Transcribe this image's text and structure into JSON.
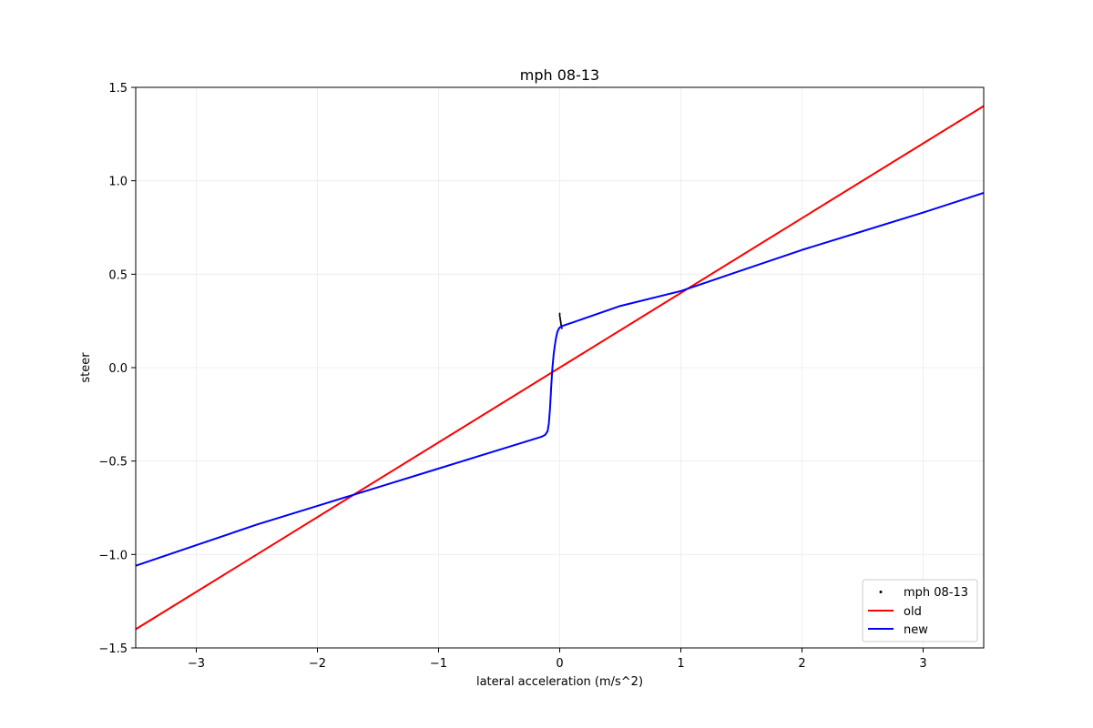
{
  "chart_data": {
    "type": "line",
    "title": "mph 08-13",
    "xlabel": "lateral acceleration (m/s^2)",
    "ylabel": "steer",
    "xlim": [
      -3.5,
      3.5
    ],
    "ylim": [
      -1.5,
      1.5
    ],
    "x_ticks": [
      -3,
      -2,
      -1,
      0,
      1,
      2,
      3
    ],
    "x_tick_labels": [
      "−3",
      "−2",
      "−1",
      "0",
      "1",
      "2",
      "3"
    ],
    "y_ticks": [
      -1.5,
      -1.0,
      -0.5,
      0.0,
      0.5,
      1.0,
      1.5
    ],
    "y_tick_labels": [
      "−1.5",
      "−1.0",
      "−0.5",
      "0.0",
      "0.5",
      "1.0",
      "1.5"
    ],
    "grid": true,
    "legend_position": "lower right",
    "legend": [
      "mph 08-13",
      "old",
      "new"
    ],
    "series": [
      {
        "name": "mph 08-13",
        "kind": "scatter",
        "color": "#000000",
        "points": [
          [
            0.0,
            0.29
          ],
          [
            0.0,
            0.285
          ],
          [
            0.0,
            0.28
          ],
          [
            0.0,
            0.275
          ],
          [
            0.003,
            0.27
          ],
          [
            0.003,
            0.265
          ],
          [
            0.005,
            0.26
          ],
          [
            0.005,
            0.255
          ],
          [
            0.008,
            0.25
          ],
          [
            0.008,
            0.245
          ],
          [
            0.01,
            0.24
          ],
          [
            0.01,
            0.235
          ],
          [
            0.012,
            0.23
          ],
          [
            0.012,
            0.225
          ],
          [
            0.015,
            0.22
          ],
          [
            0.015,
            0.215
          ],
          [
            0.018,
            0.21
          ]
        ]
      },
      {
        "name": "old",
        "kind": "line",
        "color": "#ff0000",
        "x": [
          -3.5,
          3.5
        ],
        "y": [
          -1.4,
          1.4
        ]
      },
      {
        "name": "new",
        "kind": "line",
        "color": "#0000ff",
        "x": [
          -3.5,
          -3.0,
          -2.5,
          -2.0,
          -1.5,
          -1.0,
          -0.5,
          -0.25,
          -0.15,
          -0.12,
          -0.1,
          -0.09,
          -0.08,
          -0.07,
          -0.06,
          -0.05,
          -0.04,
          -0.03,
          -0.02,
          -0.01,
          0.0,
          0.03,
          0.1,
          0.5,
          1.0,
          1.5,
          2.0,
          2.5,
          3.0,
          3.5
        ],
        "y": [
          -1.06,
          -0.95,
          -0.84,
          -0.74,
          -0.64,
          -0.54,
          -0.44,
          -0.39,
          -0.37,
          -0.36,
          -0.34,
          -0.3,
          -0.22,
          -0.1,
          0.0,
          0.07,
          0.12,
          0.16,
          0.19,
          0.205,
          0.215,
          0.225,
          0.24,
          0.33,
          0.41,
          0.52,
          0.63,
          0.73,
          0.83,
          0.935
        ]
      }
    ]
  }
}
